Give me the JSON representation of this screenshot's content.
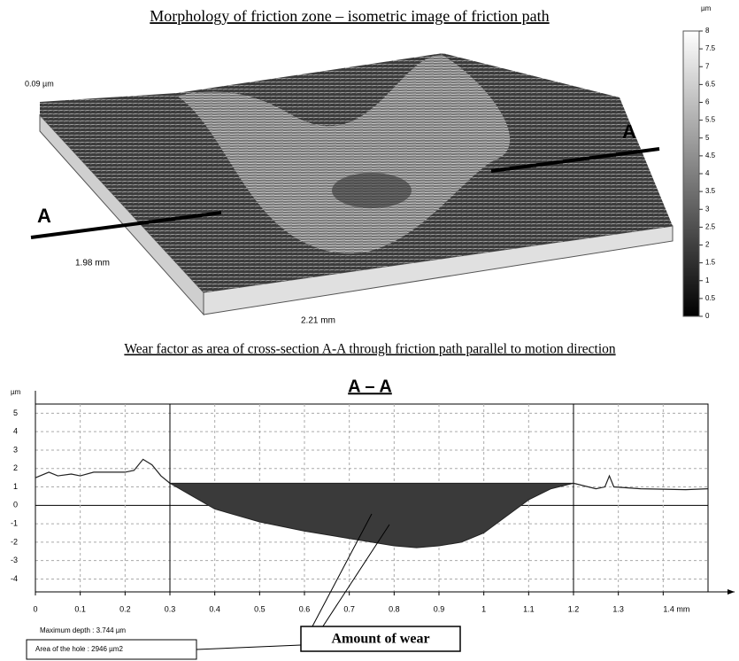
{
  "figure": {
    "top_title": "Morphology of friction zone – isometric image of friction path",
    "z_label": "0.09 µm",
    "depth_label": "1.98 mm",
    "width_label": "2.21 mm",
    "section_left": "A",
    "section_right": "A",
    "colorbar": {
      "unit": "µm",
      "range": [
        0,
        8
      ],
      "ticks": [
        8,
        7.5,
        7,
        6.5,
        6,
        5.5,
        5,
        4.5,
        4,
        3.5,
        3,
        2.5,
        2,
        1.5,
        1,
        0.5,
        0
      ]
    },
    "bottom_title": "Wear factor as area of cross-section A-A through friction path parallel to motion direction",
    "max_depth": "Maximum depth : 3.744 µm",
    "hole_area": "Area of the hole : 2946 µm2",
    "callout": "Amount of wear"
  },
  "chart_data": {
    "type": "line",
    "title": "A – A",
    "y_label": "µm",
    "xlim": [
      0,
      1.5
    ],
    "ylim": [
      -4.7,
      5.5
    ],
    "xticks": [
      0,
      0.1,
      0.2,
      0.3,
      0.4,
      0.5,
      0.6,
      0.7,
      0.8,
      0.9,
      1,
      1.1,
      1.2,
      1.3,
      {
        "value": 1.4,
        "label": "1.4 mm"
      }
    ],
    "yticks": [
      5,
      4,
      3,
      2,
      1,
      0,
      -1,
      -2,
      -3,
      -4
    ],
    "grid": true,
    "series": [
      {
        "color": "#222222",
        "x": [
          0,
          0.03,
          0.05,
          0.08,
          0.1,
          0.13,
          0.15,
          0.18,
          0.2,
          0.22,
          0.24,
          0.26,
          0.28,
          0.3
        ],
        "values": [
          1.5,
          1.8,
          1.6,
          1.7,
          1.6,
          1.8,
          1.8,
          1.8,
          1.8,
          1.9,
          2.5,
          2.2,
          1.6,
          1.2
        ]
      },
      {
        "color": "#222222",
        "fill": "#3a3a3a",
        "x": [
          0.3,
          0.35,
          0.4,
          0.5,
          0.6,
          0.7,
          0.8,
          0.85,
          0.9,
          0.95,
          1,
          1.05,
          1.1,
          1.15,
          1.2
        ],
        "values": [
          1.2,
          0.5,
          -0.2,
          -0.9,
          -1.4,
          -1.8,
          -2.2,
          -2.3,
          -2.2,
          -2,
          -1.5,
          -0.6,
          0.3,
          0.9,
          1.2
        ]
      },
      {
        "color": "#222222",
        "x": [
          1.2,
          1.25,
          1.27,
          1.28,
          1.29,
          1.35,
          1.45,
          1.5
        ],
        "values": [
          1.2,
          0.9,
          1,
          1.6,
          1,
          0.9,
          0.85,
          0.9
        ]
      }
    ]
  }
}
